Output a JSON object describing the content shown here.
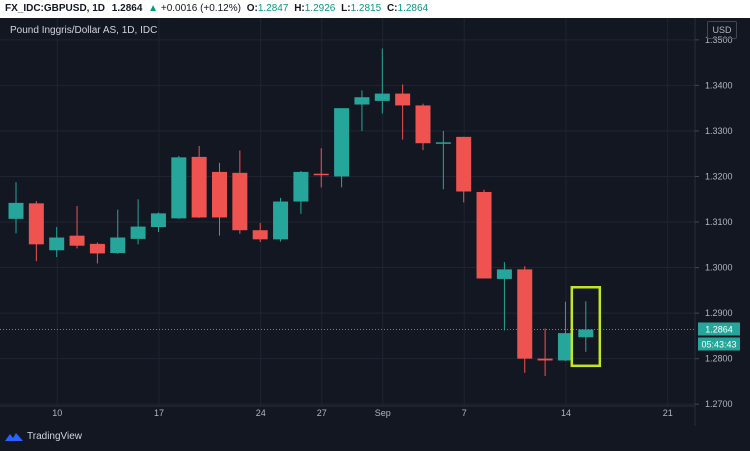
{
  "header": {
    "symbol": "FX_IDC:GBPUSD, 1D",
    "last": "1.2864",
    "change": "+0.0016 (+0.12%)",
    "o_label": "O:",
    "o_value": "1.2847",
    "h_label": "H:",
    "h_value": "1.2926",
    "l_label": "L:",
    "l_value": "1.2815",
    "c_label": "C:",
    "c_value": "1.2864"
  },
  "legend_title": "Pound Inggris/Dollar AS, 1D, IDC",
  "currency_button": "USD",
  "logo_text": "TradingView",
  "colors": {
    "up": "#26a69a",
    "down": "#ef5350",
    "highlight": "#c6e324",
    "background": "#131722",
    "grid": "#1f2433"
  },
  "chart_data": {
    "type": "candlestick",
    "y_ticks": [
      "1.3500",
      "1.3400",
      "1.3300",
      "1.3200",
      "1.3100",
      "1.3000",
      "1.2900",
      "1.2800",
      "1.2700"
    ],
    "y_range": [
      1.2696,
      1.3548
    ],
    "x_ticks": [
      {
        "label": "10",
        "index": 2
      },
      {
        "label": "17",
        "index": 7
      },
      {
        "label": "24",
        "index": 12
      },
      {
        "label": "27",
        "index": 15
      },
      {
        "label": "Sep",
        "index": 18
      },
      {
        "label": "7",
        "index": 22
      },
      {
        "label": "14",
        "index": 27
      },
      {
        "label": "21",
        "index": 32
      }
    ],
    "candles": [
      {
        "o": 1.3107,
        "h": 1.3187,
        "l": 1.3075,
        "c": 1.3142
      },
      {
        "o": 1.3141,
        "h": 1.3146,
        "l": 1.3014,
        "c": 1.3051
      },
      {
        "o": 1.3038,
        "h": 1.3089,
        "l": 1.3023,
        "c": 1.3066
      },
      {
        "o": 1.307,
        "h": 1.3135,
        "l": 1.3042,
        "c": 1.3048
      },
      {
        "o": 1.3052,
        "h": 1.3055,
        "l": 1.3009,
        "c": 1.3031
      },
      {
        "o": 1.3032,
        "h": 1.3127,
        "l": 1.303,
        "c": 1.3066
      },
      {
        "o": 1.3063,
        "h": 1.315,
        "l": 1.3051,
        "c": 1.309
      },
      {
        "o": 1.3089,
        "h": 1.3121,
        "l": 1.3078,
        "c": 1.3119
      },
      {
        "o": 1.3108,
        "h": 1.3245,
        "l": 1.3107,
        "c": 1.3242
      },
      {
        "o": 1.3243,
        "h": 1.3267,
        "l": 1.3109,
        "c": 1.311
      },
      {
        "o": 1.321,
        "h": 1.323,
        "l": 1.307,
        "c": 1.311
      },
      {
        "o": 1.3208,
        "h": 1.3257,
        "l": 1.3074,
        "c": 1.3082
      },
      {
        "o": 1.3082,
        "h": 1.3098,
        "l": 1.3056,
        "c": 1.3062
      },
      {
        "o": 1.3062,
        "h": 1.3153,
        "l": 1.3057,
        "c": 1.3145
      },
      {
        "o": 1.3145,
        "h": 1.3212,
        "l": 1.3118,
        "c": 1.321
      },
      {
        "o": 1.3206,
        "h": 1.3262,
        "l": 1.3176,
        "c": 1.3203
      },
      {
        "o": 1.32,
        "h": 1.335,
        "l": 1.3176,
        "c": 1.335
      },
      {
        "o": 1.3358,
        "h": 1.3389,
        "l": 1.33,
        "c": 1.3374
      },
      {
        "o": 1.3366,
        "h": 1.3481,
        "l": 1.3338,
        "c": 1.3382
      },
      {
        "o": 1.3382,
        "h": 1.3402,
        "l": 1.3281,
        "c": 1.3356
      },
      {
        "o": 1.3356,
        "h": 1.336,
        "l": 1.3258,
        "c": 1.3273
      },
      {
        "o": 1.3273,
        "h": 1.33,
        "l": 1.3172,
        "c": 1.3275
      },
      {
        "o": 1.3287,
        "h": 1.3287,
        "l": 1.3143,
        "c": 1.3167
      },
      {
        "o": 1.3166,
        "h": 1.3171,
        "l": 1.2976,
        "c": 1.2976
      },
      {
        "o": 1.2975,
        "h": 1.3012,
        "l": 1.2862,
        "c": 1.2996
      },
      {
        "o": 1.2996,
        "h": 1.3003,
        "l": 1.2769,
        "c": 1.28
      },
      {
        "o": 1.28,
        "h": 1.2866,
        "l": 1.2762,
        "c": 1.2796
      },
      {
        "o": 1.2796,
        "h": 1.2925,
        "l": 1.2795,
        "c": 1.2856
      },
      {
        "o": 1.2847,
        "h": 1.2926,
        "l": 1.2815,
        "c": 1.2864
      }
    ],
    "highlight_index": 28,
    "last_price_label": "1.2864",
    "countdown_label": "05:43:43",
    "grid": true
  }
}
